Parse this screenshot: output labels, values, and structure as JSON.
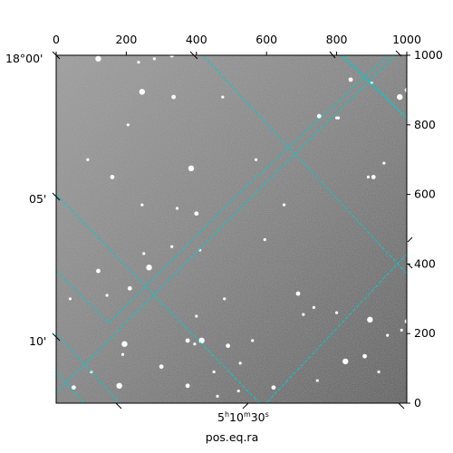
{
  "chart_data": {
    "type": "image-wcs",
    "xlabel": "pos.eq.ra",
    "x_axis_top": {
      "ticks": [
        0,
        200,
        400,
        600,
        800,
        1000
      ],
      "tick_labels": [
        "0",
        "200",
        "400",
        "600",
        "800",
        "1000"
      ]
    },
    "y_axis_right": {
      "ticks": [
        0,
        200,
        400,
        600,
        800,
        1000
      ],
      "tick_labels": [
        "0",
        "200",
        "400",
        "600",
        "800",
        "1000"
      ]
    },
    "dec_labels": [
      "18°00'",
      "05'",
      "10'"
    ],
    "ra_label": {
      "h": "5",
      "m": "10",
      "s": "30"
    },
    "grid_color": "#00cccc",
    "image_colormap": "gray",
    "grid_lines": [
      [
        [
          0,
          1000
        ],
        [
          400,
          1020
        ]
      ],
      [
        [
          400,
          1020
        ],
        [
          1030,
          340
        ]
      ],
      [
        [
          0,
          600
        ],
        [
          580,
          0
        ]
      ],
      [
        [
          0,
          30
        ],
        [
          700,
          735
        ]
      ],
      [
        [
          700,
          735
        ],
        [
          1000,
          1030
        ]
      ],
      [
        [
          0,
          200
        ],
        [
          200,
          -20
        ]
      ],
      [
        [
          0,
          380
        ],
        [
          150,
          230
        ]
      ],
      [
        [
          150,
          230
        ],
        [
          540,
          620
        ]
      ],
      [
        [
          540,
          620
        ],
        [
          980,
          1030
        ]
      ],
      [
        [
          790,
          1030
        ],
        [
          1000,
          820
        ]
      ],
      [
        [
          0,
          90
        ],
        [
          80,
          0
        ]
      ],
      [
        [
          780,
          1030
        ],
        [
          1020,
          800
        ]
      ],
      [
        [
          580,
          -20
        ],
        [
          1020,
          450
        ]
      ],
      [
        [
          1000,
          0
        ],
        [
          1020,
          20
        ]
      ]
    ],
    "stars": [
      [
        120,
        990
      ],
      [
        235,
        980
      ],
      [
        280,
        990
      ],
      [
        330,
        1000
      ],
      [
        570,
        700
      ],
      [
        205,
        800
      ],
      [
        335,
        880
      ],
      [
        245,
        895
      ],
      [
        475,
        880
      ],
      [
        750,
        825
      ],
      [
        800,
        820
      ],
      [
        805,
        820
      ],
      [
        840,
        930
      ],
      [
        900,
        920
      ],
      [
        980,
        880
      ],
      [
        1000,
        900
      ],
      [
        935,
        690
      ],
      [
        890,
        650
      ],
      [
        905,
        650
      ],
      [
        1020,
        600
      ],
      [
        650,
        570
      ],
      [
        385,
        675
      ],
      [
        345,
        560
      ],
      [
        245,
        570
      ],
      [
        160,
        650
      ],
      [
        90,
        700
      ],
      [
        145,
        310
      ],
      [
        210,
        330
      ],
      [
        265,
        390
      ],
      [
        330,
        450
      ],
      [
        400,
        545
      ],
      [
        595,
        470
      ],
      [
        480,
        300
      ],
      [
        375,
        180
      ],
      [
        395,
        170
      ],
      [
        415,
        180
      ],
      [
        490,
        165
      ],
      [
        560,
        180
      ],
      [
        400,
        250
      ],
      [
        690,
        315
      ],
      [
        735,
        275
      ],
      [
        800,
        260
      ],
      [
        895,
        240
      ],
      [
        945,
        195
      ],
      [
        985,
        210
      ],
      [
        1000,
        235
      ],
      [
        705,
        255
      ],
      [
        920,
        90
      ],
      [
        880,
        135
      ],
      [
        825,
        120
      ],
      [
        745,
        65
      ],
      [
        620,
        45
      ],
      [
        520,
        35
      ],
      [
        460,
        20
      ],
      [
        375,
        50
      ],
      [
        190,
        140
      ],
      [
        180,
        50
      ],
      [
        50,
        45
      ],
      [
        100,
        90
      ],
      [
        40,
        300
      ],
      [
        120,
        380
      ],
      [
        250,
        430
      ],
      [
        410,
        440
      ],
      [
        195,
        170
      ],
      [
        450,
        90
      ],
      [
        525,
        115
      ],
      [
        300,
        105
      ]
    ]
  }
}
